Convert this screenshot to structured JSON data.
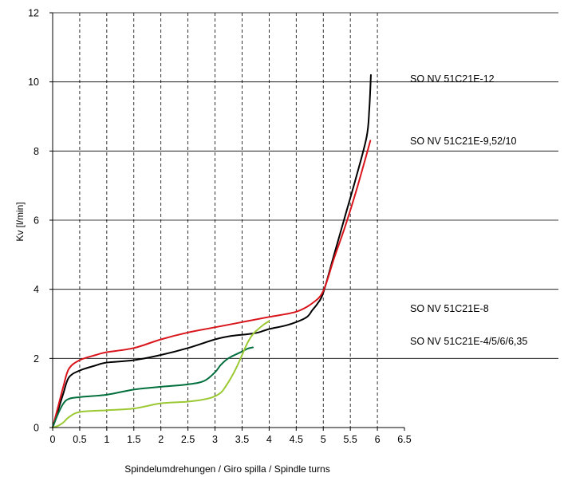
{
  "chart_data": {
    "type": "line",
    "title": "",
    "xlabel": "Spindelumdrehungen / Giro spilla / Spindle turns",
    "ylabel": "Kv [l/min]",
    "xlim": [
      0,
      6.5
    ],
    "ylim": [
      0,
      12
    ],
    "x_ticks": [
      "0",
      "0.5",
      "1",
      "1.5",
      "2",
      "2.5",
      "3",
      "3.5",
      "4",
      "4.5",
      "5",
      "5.5",
      "6",
      "6.5"
    ],
    "y_ticks": [
      "0",
      "2",
      "4",
      "6",
      "8",
      "10",
      "12"
    ],
    "grid": {
      "x": "dashed-vertical",
      "y": "solid-horizontal"
    },
    "legend": "right, text labels beside curves",
    "series": [
      {
        "name": "SO NV 51C21E-12",
        "color": "#000000",
        "x": [
          0,
          0.1,
          0.2,
          0.3,
          0.5,
          0.8,
          1.0,
          1.5,
          2.0,
          2.5,
          3.0,
          3.3,
          3.6,
          3.8,
          4.0,
          4.3,
          4.5,
          4.7,
          4.8,
          4.9,
          5.0,
          5.2,
          5.4,
          5.6,
          5.8,
          5.85,
          5.88
        ],
        "values": [
          0,
          0.5,
          1.0,
          1.45,
          1.65,
          1.8,
          1.88,
          1.95,
          2.1,
          2.3,
          2.55,
          2.65,
          2.7,
          2.75,
          2.85,
          2.95,
          3.05,
          3.2,
          3.4,
          3.6,
          3.9,
          5.0,
          6.1,
          7.2,
          8.4,
          9.2,
          10.2
        ]
      },
      {
        "name": "SO NV 51C21E-9,52/10",
        "color": "#d9141b",
        "x": [
          0,
          0.1,
          0.2,
          0.3,
          0.5,
          0.8,
          1.0,
          1.5,
          2.0,
          2.5,
          3.0,
          3.5,
          4.0,
          4.5,
          4.8,
          5.0,
          5.2,
          5.4,
          5.6,
          5.8,
          5.87
        ],
        "values": [
          0,
          0.6,
          1.2,
          1.7,
          1.95,
          2.1,
          2.18,
          2.3,
          2.55,
          2.75,
          2.9,
          3.05,
          3.2,
          3.35,
          3.6,
          3.95,
          4.9,
          5.8,
          6.8,
          7.9,
          8.3
        ]
      },
      {
        "name": "SO NV 51C21E-8",
        "color": "#006f3c",
        "x": [
          0,
          0.1,
          0.2,
          0.3,
          0.5,
          1.0,
          1.5,
          2.0,
          2.5,
          2.8,
          3.0,
          3.1,
          3.2,
          3.3,
          3.5,
          3.6,
          3.7
        ],
        "values": [
          0,
          0.4,
          0.7,
          0.83,
          0.88,
          0.95,
          1.1,
          1.18,
          1.25,
          1.35,
          1.6,
          1.8,
          1.95,
          2.05,
          2.2,
          2.28,
          2.32
        ]
      },
      {
        "name": "SO NV 51C21E-4/5/6/6,35",
        "color": "#9bc933",
        "x": [
          0,
          0.1,
          0.2,
          0.3,
          0.5,
          1.0,
          1.5,
          2.0,
          2.5,
          2.9,
          3.1,
          3.2,
          3.3,
          3.4,
          3.5,
          3.6,
          3.7,
          3.8,
          3.9,
          4.0
        ],
        "values": [
          0,
          0.05,
          0.15,
          0.3,
          0.45,
          0.5,
          0.55,
          0.7,
          0.75,
          0.85,
          1.0,
          1.2,
          1.45,
          1.75,
          2.1,
          2.45,
          2.7,
          2.85,
          2.98,
          3.08
        ]
      }
    ],
    "labels": [
      {
        "text": "SO NV 51C21E-12",
        "y": 10.1
      },
      {
        "text": "SO NV 51C21E-9,52/10",
        "y": 8.3
      },
      {
        "text": "SO NV 51C21E-8",
        "y": 3.45
      },
      {
        "text": "SO NV 51C21E-4/5/6/6,35",
        "y": 2.5
      }
    ]
  }
}
